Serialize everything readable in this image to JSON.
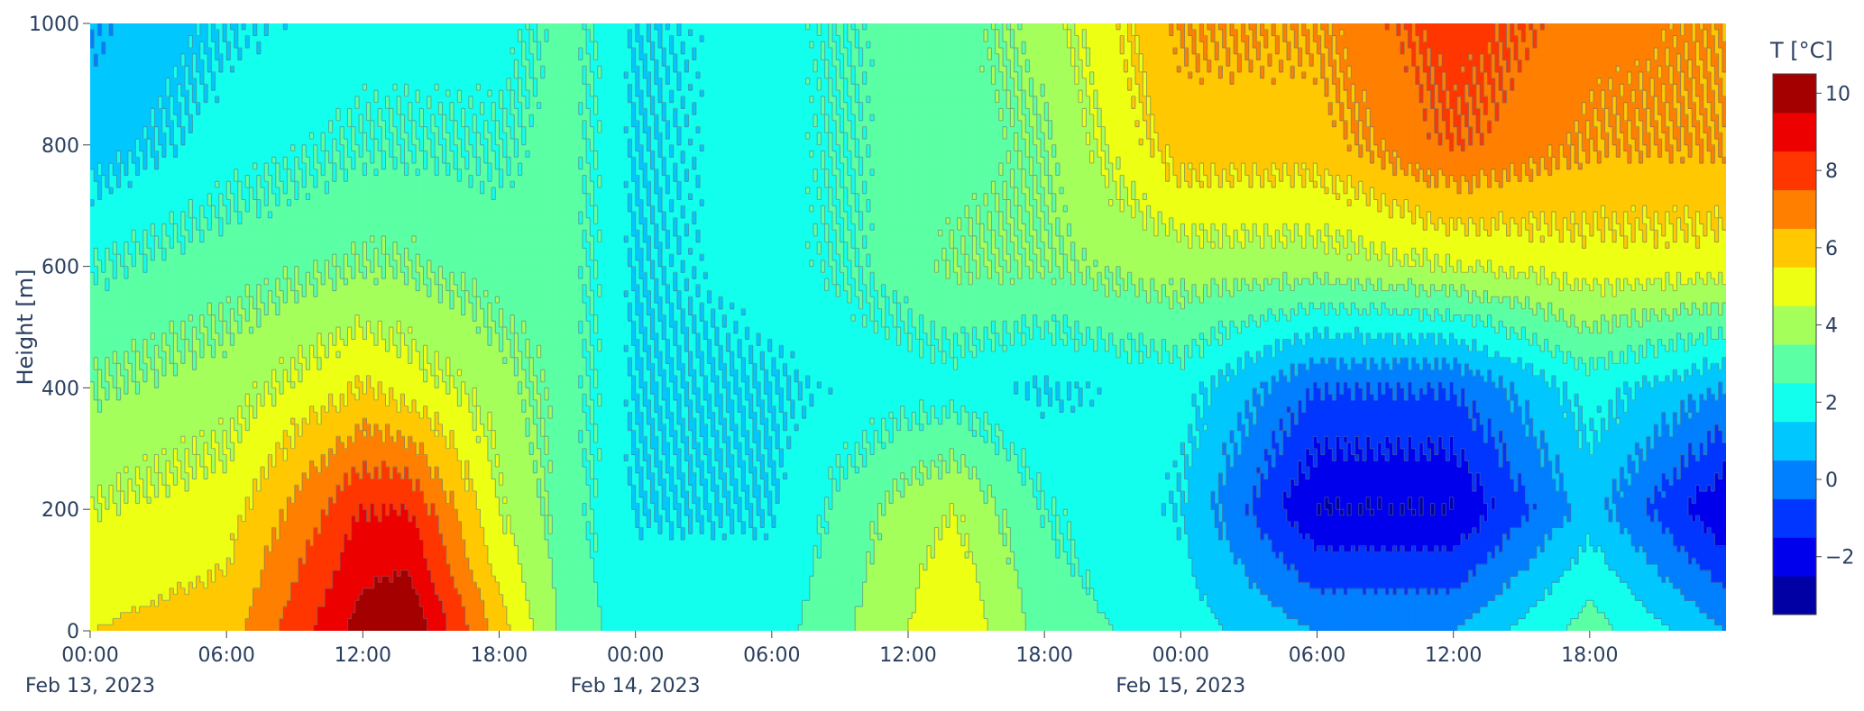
{
  "chart_data": {
    "type": "contour",
    "xlabel": "",
    "ylabel": "Height [m]",
    "x_range": [
      "2023-02-13 00:00",
      "2023-02-16 00:00"
    ],
    "x_ticks": [
      {
        "time": "2023-02-13 00:00",
        "label": "00:00",
        "date": "Feb 13, 2023"
      },
      {
        "time": "2023-02-13 06:00",
        "label": "06:00",
        "date": ""
      },
      {
        "time": "2023-02-13 12:00",
        "label": "12:00",
        "date": ""
      },
      {
        "time": "2023-02-13 18:00",
        "label": "18:00",
        "date": ""
      },
      {
        "time": "2023-02-14 00:00",
        "label": "00:00",
        "date": "Feb 14, 2023"
      },
      {
        "time": "2023-02-14 06:00",
        "label": "06:00",
        "date": ""
      },
      {
        "time": "2023-02-14 12:00",
        "label": "12:00",
        "date": ""
      },
      {
        "time": "2023-02-14 18:00",
        "label": "18:00",
        "date": ""
      },
      {
        "time": "2023-02-15 00:00",
        "label": "00:00",
        "date": "Feb 15, 2023"
      },
      {
        "time": "2023-02-15 06:00",
        "label": "06:00",
        "date": ""
      },
      {
        "time": "2023-02-15 12:00",
        "label": "12:00",
        "date": ""
      },
      {
        "time": "2023-02-15 18:00",
        "label": "18:00",
        "date": ""
      }
    ],
    "ylim": [
      0,
      1000
    ],
    "y_ticks": [
      0,
      200,
      400,
      600,
      800,
      1000
    ],
    "colorbar": {
      "title": "T [°C]",
      "range": [
        -3.5,
        10.5
      ],
      "ticks": [
        -2,
        0,
        2,
        4,
        6,
        8,
        10
      ],
      "contour_step": 1
    },
    "colorscale": [
      [
        0.0,
        "#00007f"
      ],
      [
        0.125,
        "#0000ff"
      ],
      [
        0.25,
        "#007fff"
      ],
      [
        0.375,
        "#00ffff"
      ],
      [
        0.5,
        "#7fff7f"
      ],
      [
        0.625,
        "#ffff00"
      ],
      [
        0.75,
        "#ff7f00"
      ],
      [
        0.875,
        "#ff0000"
      ],
      [
        1.0,
        "#7f0000"
      ]
    ],
    "z_profiles": {
      "x_hours": [
        0,
        6,
        12,
        14,
        18,
        21,
        24,
        30,
        36,
        38,
        42,
        48,
        54,
        60,
        66,
        72
      ],
      "heights": [
        0,
        200,
        400,
        600,
        800,
        1000
      ],
      "values": [
        [
          5.5,
          6.0,
          10.0,
          10.5,
          6.0,
          3.0,
          2.0,
          2.0,
          4.5,
          5.5,
          3.0,
          2.0,
          0.5,
          0.5,
          3.0,
          0.5
        ],
        [
          4.5,
          5.0,
          8.5,
          8.5,
          4.5,
          3.0,
          1.5,
          1.5,
          4.0,
          4.5,
          2.5,
          1.5,
          -2.5,
          -2.5,
          1.0,
          -2.5
        ],
        [
          3.5,
          4.0,
          5.5,
          5.0,
          4.0,
          3.0,
          1.5,
          1.5,
          2.0,
          2.0,
          1.5,
          2.0,
          -0.5,
          -0.5,
          2.0,
          0.5
        ],
        [
          2.5,
          3.0,
          3.5,
          3.5,
          3.0,
          3.0,
          1.5,
          2.0,
          3.0,
          3.5,
          3.5,
          4.0,
          4.0,
          4.5,
          5.0,
          5.0
        ],
        [
          1.0,
          2.0,
          2.5,
          2.5,
          2.5,
          3.0,
          1.5,
          2.0,
          3.0,
          3.0,
          3.5,
          6.0,
          6.0,
          7.5,
          6.5,
          6.5
        ],
        [
          0.5,
          1.5,
          2.0,
          2.0,
          2.0,
          3.0,
          1.5,
          2.0,
          3.0,
          3.0,
          4.0,
          6.5,
          6.5,
          8.0,
          7.0,
          6.5
        ]
      ]
    }
  }
}
